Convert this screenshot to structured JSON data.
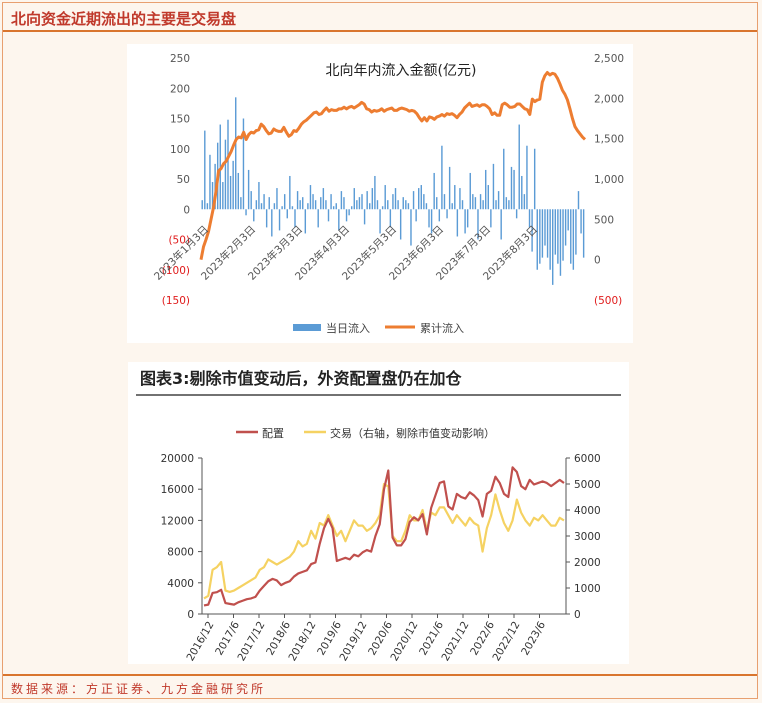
{
  "header": {
    "title": "北向资金近期流出的主要是交易盘"
  },
  "footer": {
    "source": "数据来源：方正证券、九方金融研究所"
  },
  "colors": {
    "accent": "#d9752e",
    "title_red": "#c0392b",
    "bar_blue": "#5b9bd5",
    "line_orange": "#ed7d31",
    "peizhi": "#c0504d",
    "jiaoyi": "#f5d262"
  },
  "chart_data": [
    {
      "type": "bar",
      "title": "北向年内流入金额(亿元)",
      "legend": [
        "当日流入",
        "累计流入"
      ],
      "legend_position": "bottom",
      "x_tick_labels": [
        "2023年1月3日",
        "2023年2月3日",
        "2023年3月3日",
        "2023年4月3日",
        "2023年5月3日",
        "2023年6月3日",
        "2023年7月3日",
        "2023年8月3日"
      ],
      "left_axis": {
        "ylim": [
          -150,
          250
        ],
        "tick_labels": [
          "250",
          "200",
          "150",
          "100",
          "50",
          "0",
          "(50)",
          "(100)",
          "(150)"
        ]
      },
      "right_axis": {
        "ylim": [
          -500,
          2500
        ],
        "tick_labels": [
          "2,500",
          "2,000",
          "1,500",
          "1,000",
          "500",
          "0",
          "(500)"
        ]
      },
      "grid": false,
      "series": [
        {
          "name": "当日流入",
          "type": "bar",
          "axis": "left",
          "values": [
            15,
            130,
            10,
            90,
            45,
            75,
            110,
            140,
            45,
            115,
            148,
            55,
            80,
            185,
            60,
            20,
            150,
            -10,
            65,
            30,
            -20,
            15,
            45,
            10,
            25,
            -30,
            20,
            -45,
            10,
            35,
            -35,
            5,
            25,
            -15,
            55,
            5,
            -30,
            30,
            15,
            20,
            -40,
            10,
            40,
            25,
            15,
            -30,
            20,
            35,
            15,
            -20,
            25,
            5,
            10,
            -35,
            30,
            20,
            -20,
            -10,
            5,
            35,
            15,
            20,
            25,
            -25,
            30,
            10,
            35,
            55,
            15,
            -40,
            5,
            40,
            15,
            -30,
            25,
            35,
            15,
            -50,
            20,
            15,
            10,
            -60,
            30,
            -20,
            35,
            40,
            25,
            10,
            -30,
            -40,
            60,
            20,
            -20,
            105,
            25,
            -15,
            70,
            10,
            40,
            -45,
            35,
            15,
            -40,
            -30,
            60,
            25,
            20,
            -50,
            25,
            15,
            65,
            40,
            -30,
            75,
            15,
            30,
            -50,
            100,
            20,
            15,
            70,
            65,
            -15,
            140,
            55,
            25,
            105,
            -30,
            -70,
            100,
            -100,
            -90,
            -80,
            -60,
            -80,
            -100,
            -125,
            -75,
            -90,
            -110,
            -85,
            -60,
            -35,
            -90,
            -100,
            -75,
            30,
            -40,
            -80
          ]
        },
        {
          "name": "累计流入",
          "type": "line",
          "axis": "right",
          "values": [
            0,
            160,
            250,
            350,
            500,
            650,
            850,
            1100,
            1130,
            1190,
            1220,
            1280,
            1340,
            1420,
            1490,
            1520,
            1510,
            1580,
            1490,
            1550,
            1580,
            1570,
            1600,
            1610,
            1680,
            1650,
            1600,
            1560,
            1570,
            1620,
            1600,
            1590,
            1590,
            1640,
            1580,
            1530,
            1550,
            1600,
            1590,
            1630,
            1680,
            1710,
            1730,
            1760,
            1790,
            1820,
            1830,
            1800,
            1810,
            1850,
            1880,
            1840,
            1860,
            1850,
            1850,
            1870,
            1870,
            1890,
            1870,
            1890,
            1900,
            1880,
            1900,
            1920,
            1950,
            1930,
            1870,
            1860,
            1830,
            1850,
            1840,
            1850,
            1870,
            1840,
            1860,
            1870,
            1880,
            1850,
            1850,
            1870,
            1880,
            1870,
            1860,
            1840,
            1850,
            1840,
            1810,
            1760,
            1720,
            1760,
            1720,
            1770,
            1760,
            1740,
            1770,
            1780,
            1800,
            1780,
            1810,
            1800,
            1810,
            1790,
            1760,
            1800,
            1830,
            1880,
            1910,
            1940,
            1900,
            1910,
            1920,
            1900,
            1920,
            1920,
            1900,
            1870,
            1800,
            1820,
            1790,
            1790,
            1920,
            1940,
            1920,
            1890,
            1890,
            1900,
            1930,
            1930,
            1900,
            1870,
            1860,
            1800,
            1990,
            1960,
            1980,
            1990,
            2200,
            2280,
            2320,
            2290,
            2310,
            2300,
            2250,
            2180,
            2100,
            2050,
            1980,
            1870,
            1750,
            1650,
            1600,
            1560,
            1520,
            1490
          ]
        }
      ]
    },
    {
      "type": "line",
      "title": "图表3:剔除市值变动后，外资配置盘仍在加仓",
      "legend": [
        "配置",
        "交易（右轴，剔除市值变动影响）"
      ],
      "legend_position": "top",
      "x_tick_labels": [
        "2016/12",
        "2017/6",
        "2017/12",
        "2018/6",
        "2018/12",
        "2019/6",
        "2019/12",
        "2020/6",
        "2020/12",
        "2021/6",
        "2021/12",
        "2022/6",
        "2022/12",
        "2023/6"
      ],
      "left_axis": {
        "ylim": [
          0,
          20000
        ],
        "tick_labels": [
          "20000",
          "16000",
          "12000",
          "8000",
          "4000",
          "0"
        ]
      },
      "right_axis": {
        "ylim": [
          0,
          6000
        ],
        "tick_labels": [
          "6000",
          "5000",
          "4000",
          "3000",
          "2000",
          "1000",
          "0"
        ]
      },
      "grid": false,
      "series": [
        {
          "name": "配置",
          "axis": "left",
          "values": [
            1100,
            1200,
            2700,
            2800,
            3100,
            1400,
            1300,
            1200,
            1500,
            1700,
            1900,
            2000,
            2200,
            3000,
            3600,
            4200,
            4500,
            4300,
            3700,
            4000,
            4200,
            4800,
            5200,
            5400,
            5600,
            6400,
            6600,
            9000,
            11000,
            12200,
            11000,
            6800,
            7000,
            7200,
            7000,
            7600,
            7400,
            7900,
            8200,
            8000,
            10000,
            11500,
            16000,
            18400,
            9800,
            8800,
            8800,
            9600,
            11800,
            12400,
            12000,
            12800,
            10200,
            13600,
            15200,
            16800,
            17000,
            13800,
            13400,
            15400,
            15000,
            14800,
            15600,
            15200,
            14600,
            12500,
            15400,
            15800,
            17600,
            16800,
            15400,
            15000,
            18800,
            18200,
            16400,
            16000,
            17200,
            16600,
            16800,
            17000,
            16800,
            16400,
            16800,
            17200,
            16800
          ]
        },
        {
          "name": "交易（右轴，剔除市值变动影响）",
          "axis": "right",
          "values": [
            600,
            700,
            1700,
            1800,
            2000,
            900,
            850,
            900,
            1000,
            1100,
            1200,
            1300,
            1400,
            1700,
            1800,
            2100,
            2000,
            1900,
            2000,
            2100,
            2200,
            2400,
            2800,
            2600,
            2700,
            3200,
            2900,
            3500,
            3400,
            3800,
            3400,
            3000,
            3200,
            2800,
            3200,
            3600,
            3400,
            3400,
            3200,
            3300,
            3500,
            3800,
            5000,
            4900,
            3000,
            2800,
            2800,
            3200,
            3800,
            3600,
            3600,
            4000,
            3200,
            3900,
            3800,
            4100,
            4100,
            3800,
            3500,
            3800,
            3600,
            3400,
            3700,
            3500,
            3400,
            2400,
            3300,
            3800,
            4600,
            4000,
            3500,
            3200,
            3600,
            4400,
            3900,
            3600,
            3400,
            3700,
            3600,
            3800,
            3600,
            3400,
            3400,
            3700,
            3600
          ]
        }
      ]
    }
  ]
}
